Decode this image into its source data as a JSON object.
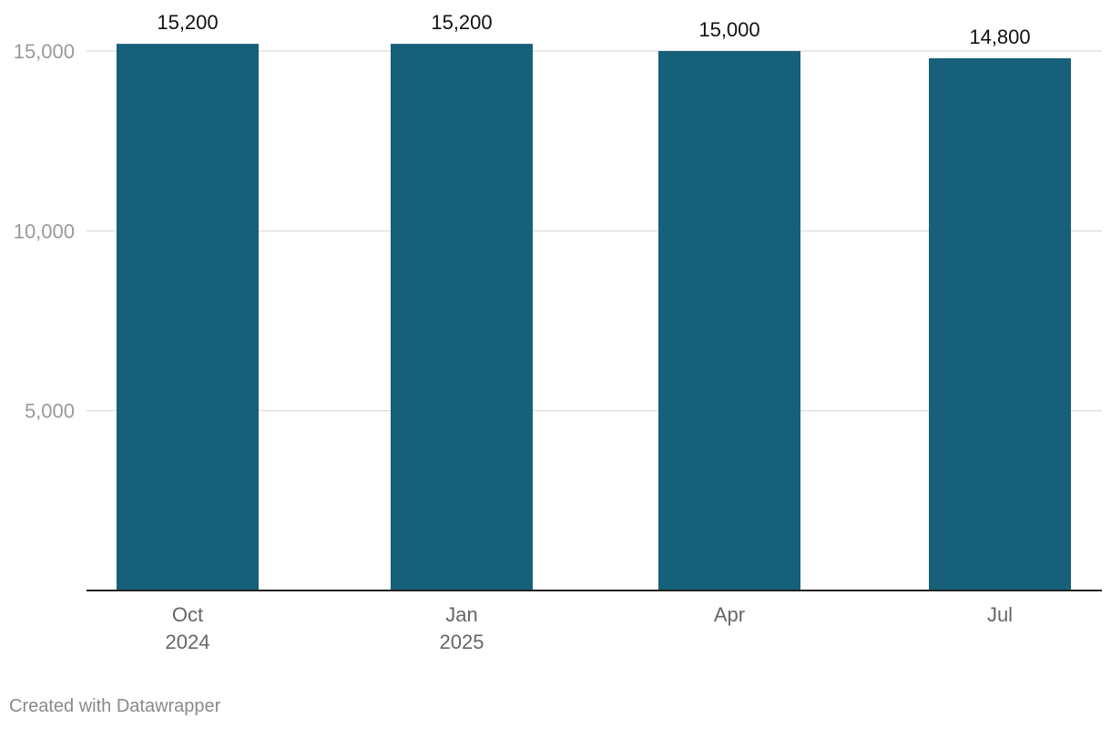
{
  "chart_data": {
    "type": "bar",
    "title": "",
    "xlabel": "",
    "ylabel": "",
    "categories": [
      {
        "line1": "Oct",
        "line2": "2024"
      },
      {
        "line1": "Jan",
        "line2": "2025"
      },
      {
        "line1": "Apr",
        "line2": ""
      },
      {
        "line1": "Jul",
        "line2": ""
      }
    ],
    "values": [
      15200,
      15200,
      15000,
      14800
    ],
    "value_labels": [
      "15,200",
      "15,200",
      "15,000",
      "14,800"
    ],
    "ylim": [
      0,
      15000
    ],
    "yticks": [
      {
        "value": 5000,
        "label": "5,000"
      },
      {
        "value": 10000,
        "label": "10,000"
      },
      {
        "value": 15000,
        "label": "15,000"
      }
    ],
    "grid": true,
    "legend": "none",
    "colors": {
      "bar": "#17607a",
      "grid": "#e0e0e0",
      "axis": "#222222",
      "tick_label": "#9a9a9a",
      "category_label": "#666666",
      "value_label": "#111111"
    }
  },
  "footer": {
    "credit": "Created with Datawrapper"
  }
}
